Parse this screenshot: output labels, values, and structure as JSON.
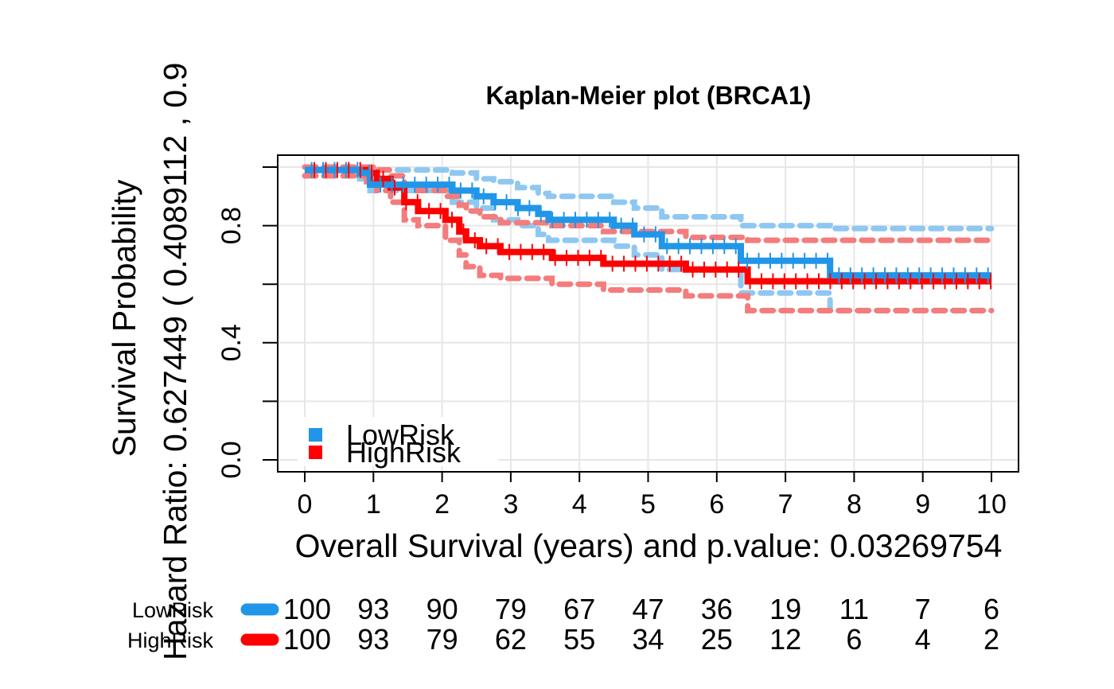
{
  "chart_data": {
    "type": "line",
    "title": "Kaplan-Meier plot (BRCA1)",
    "xlabel": "Overall Survival (years) and p.value:  0.03269754",
    "ylabel": "Survival Probability",
    "ylabel_overlay": "Hazard Ratio: 0.627449  ( 0.4089112 ,  0.9",
    "xlim": [
      0,
      10
    ],
    "ylim": [
      0,
      1
    ],
    "x_ticks": [
      "0",
      "1",
      "2",
      "3",
      "4",
      "5",
      "6",
      "7",
      "8",
      "9",
      "10"
    ],
    "y_ticks": [
      "0.0",
      "0.4",
      "0.8"
    ],
    "y_tick_marks": [
      0,
      0.2,
      0.4,
      0.6,
      0.8,
      1.0
    ],
    "grid": true,
    "legend": {
      "position": "bottom-left",
      "entries": [
        {
          "label": "LowRisk",
          "color": "#2196e8"
        },
        {
          "label": "HighRisk",
          "color": "#ff0000"
        }
      ]
    },
    "series": [
      {
        "name": "LowRisk",
        "color": "#2196e8",
        "x": [
          0,
          0.8,
          0.95,
          2.15,
          2.5,
          2.75,
          3.1,
          3.4,
          3.55,
          4.5,
          4.8,
          5.2,
          6.35,
          7.65,
          10.0
        ],
        "y": [
          0.99,
          0.98,
          0.94,
          0.92,
          0.9,
          0.88,
          0.86,
          0.84,
          0.82,
          0.8,
          0.77,
          0.73,
          0.68,
          0.63,
          0.63
        ],
        "ci_upper": [
          1.0,
          1.0,
          0.99,
          0.98,
          0.96,
          0.95,
          0.93,
          0.91,
          0.9,
          0.88,
          0.86,
          0.83,
          0.8,
          0.79,
          0.79
        ],
        "ci_lower": [
          0.97,
          0.96,
          0.92,
          0.88,
          0.86,
          0.82,
          0.8,
          0.77,
          0.75,
          0.73,
          0.7,
          0.65,
          0.57,
          0.51,
          0.51
        ]
      },
      {
        "name": "HighRisk",
        "color": "#ff0000",
        "x": [
          0,
          0.9,
          1.05,
          1.25,
          1.45,
          1.65,
          2.05,
          2.25,
          2.35,
          2.55,
          2.85,
          3.6,
          4.35,
          5.55,
          6.45,
          10.0
        ],
        "y": [
          0.99,
          0.98,
          0.96,
          0.93,
          0.88,
          0.85,
          0.82,
          0.78,
          0.75,
          0.73,
          0.71,
          0.69,
          0.67,
          0.65,
          0.61,
          0.61
        ],
        "ci_upper": [
          1.0,
          1.0,
          0.99,
          0.97,
          0.94,
          0.92,
          0.9,
          0.87,
          0.85,
          0.83,
          0.81,
          0.8,
          0.78,
          0.76,
          0.75,
          0.75
        ],
        "ci_lower": [
          0.97,
          0.95,
          0.92,
          0.88,
          0.82,
          0.8,
          0.75,
          0.7,
          0.66,
          0.63,
          0.62,
          0.6,
          0.58,
          0.56,
          0.51,
          0.51
        ]
      }
    ],
    "risk_table": {
      "times": [
        0,
        1,
        2,
        3,
        4,
        5,
        6,
        7,
        8,
        9,
        10
      ],
      "rows": [
        {
          "name": "LowRisk",
          "color": "#2196e8",
          "values": [
            "100",
            "93",
            "90",
            "79",
            "67",
            "47",
            "36",
            "19",
            "11",
            "7",
            "6"
          ]
        },
        {
          "name": "HighRisk",
          "color": "#ff0000",
          "values": [
            "100",
            "93",
            "79",
            "62",
            "55",
            "34",
            "25",
            "12",
            "6",
            "4",
            "2"
          ]
        }
      ]
    }
  }
}
